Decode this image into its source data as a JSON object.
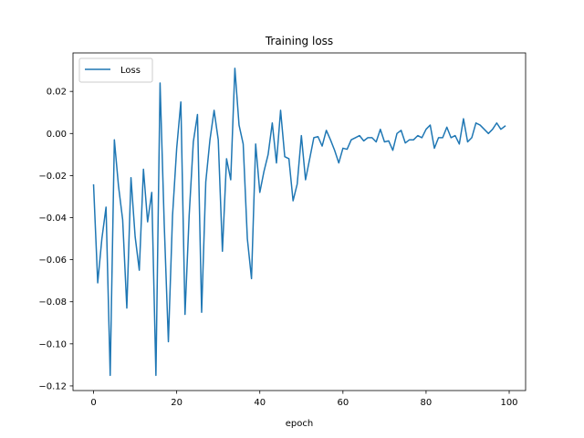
{
  "chart_data": {
    "type": "line",
    "title": "Training loss",
    "xlabel": "epoch",
    "ylabel": "",
    "xlim": [
      -4.95,
      103.95
    ],
    "ylim": [
      -0.1222,
      0.0383
    ],
    "xticks": [
      0,
      20,
      40,
      60,
      80,
      100
    ],
    "xtick_labels": [
      "0",
      "20",
      "40",
      "60",
      "80",
      "100"
    ],
    "yticks": [
      0.02,
      0.0,
      -0.02,
      -0.04,
      -0.06,
      -0.08,
      -0.1,
      -0.12
    ],
    "ytick_labels": [
      "0.02",
      "0.00",
      "−0.02",
      "−0.04",
      "−0.06",
      "−0.08",
      "−0.10",
      "−0.12"
    ],
    "grid": false,
    "legend": {
      "placement": "upper-left",
      "entries": [
        "Loss"
      ]
    },
    "series": [
      {
        "name": "Loss",
        "color": "#1f77b4",
        "x": [
          0,
          1,
          2,
          3,
          4,
          5,
          6,
          7,
          8,
          9,
          10,
          11,
          12,
          13,
          14,
          15,
          16,
          17,
          18,
          19,
          20,
          21,
          22,
          23,
          24,
          25,
          26,
          27,
          28,
          29,
          30,
          31,
          32,
          33,
          34,
          35,
          36,
          37,
          38,
          39,
          40,
          41,
          42,
          43,
          44,
          45,
          46,
          47,
          48,
          49,
          50,
          51,
          52,
          53,
          54,
          55,
          56,
          57,
          58,
          59,
          60,
          61,
          62,
          63,
          64,
          65,
          66,
          67,
          68,
          69,
          70,
          71,
          72,
          73,
          74,
          75,
          76,
          77,
          78,
          79,
          80,
          81,
          82,
          83,
          84,
          85,
          86,
          87,
          88,
          89,
          90,
          91,
          92,
          93,
          94,
          95,
          96,
          97,
          98,
          99
        ],
        "values": [
          -0.0245,
          -0.071,
          -0.05,
          -0.035,
          -0.115,
          -0.003,
          -0.025,
          -0.041,
          -0.083,
          -0.021,
          -0.049,
          -0.065,
          -0.017,
          -0.042,
          -0.028,
          -0.115,
          0.024,
          -0.043,
          -0.099,
          -0.039,
          -0.007,
          0.015,
          -0.086,
          -0.039,
          -0.004,
          0.009,
          -0.085,
          -0.023,
          -0.003,
          0.011,
          -0.003,
          -0.056,
          -0.012,
          -0.022,
          0.031,
          0.004,
          -0.005,
          -0.05,
          -0.069,
          -0.005,
          -0.028,
          -0.018,
          -0.01,
          0.005,
          -0.014,
          0.011,
          -0.011,
          -0.012,
          -0.032,
          -0.024,
          -0.001,
          -0.022,
          -0.012,
          -0.002,
          -0.0015,
          -0.006,
          0.0015,
          -0.003,
          -0.008,
          -0.014,
          -0.007,
          -0.0075,
          -0.003,
          -0.002,
          -0.001,
          -0.0035,
          -0.002,
          -0.002,
          -0.004,
          0.002,
          -0.004,
          -0.0035,
          -0.008,
          0.0,
          0.0015,
          -0.0045,
          -0.003,
          -0.003,
          -0.001,
          -0.002,
          0.002,
          0.004,
          -0.007,
          -0.002,
          -0.002,
          0.003,
          -0.002,
          -0.001,
          -0.005,
          0.007,
          -0.004,
          -0.002,
          0.005,
          0.004,
          0.002,
          0.0,
          0.002,
          0.005,
          0.002,
          0.0035
        ]
      }
    ]
  }
}
